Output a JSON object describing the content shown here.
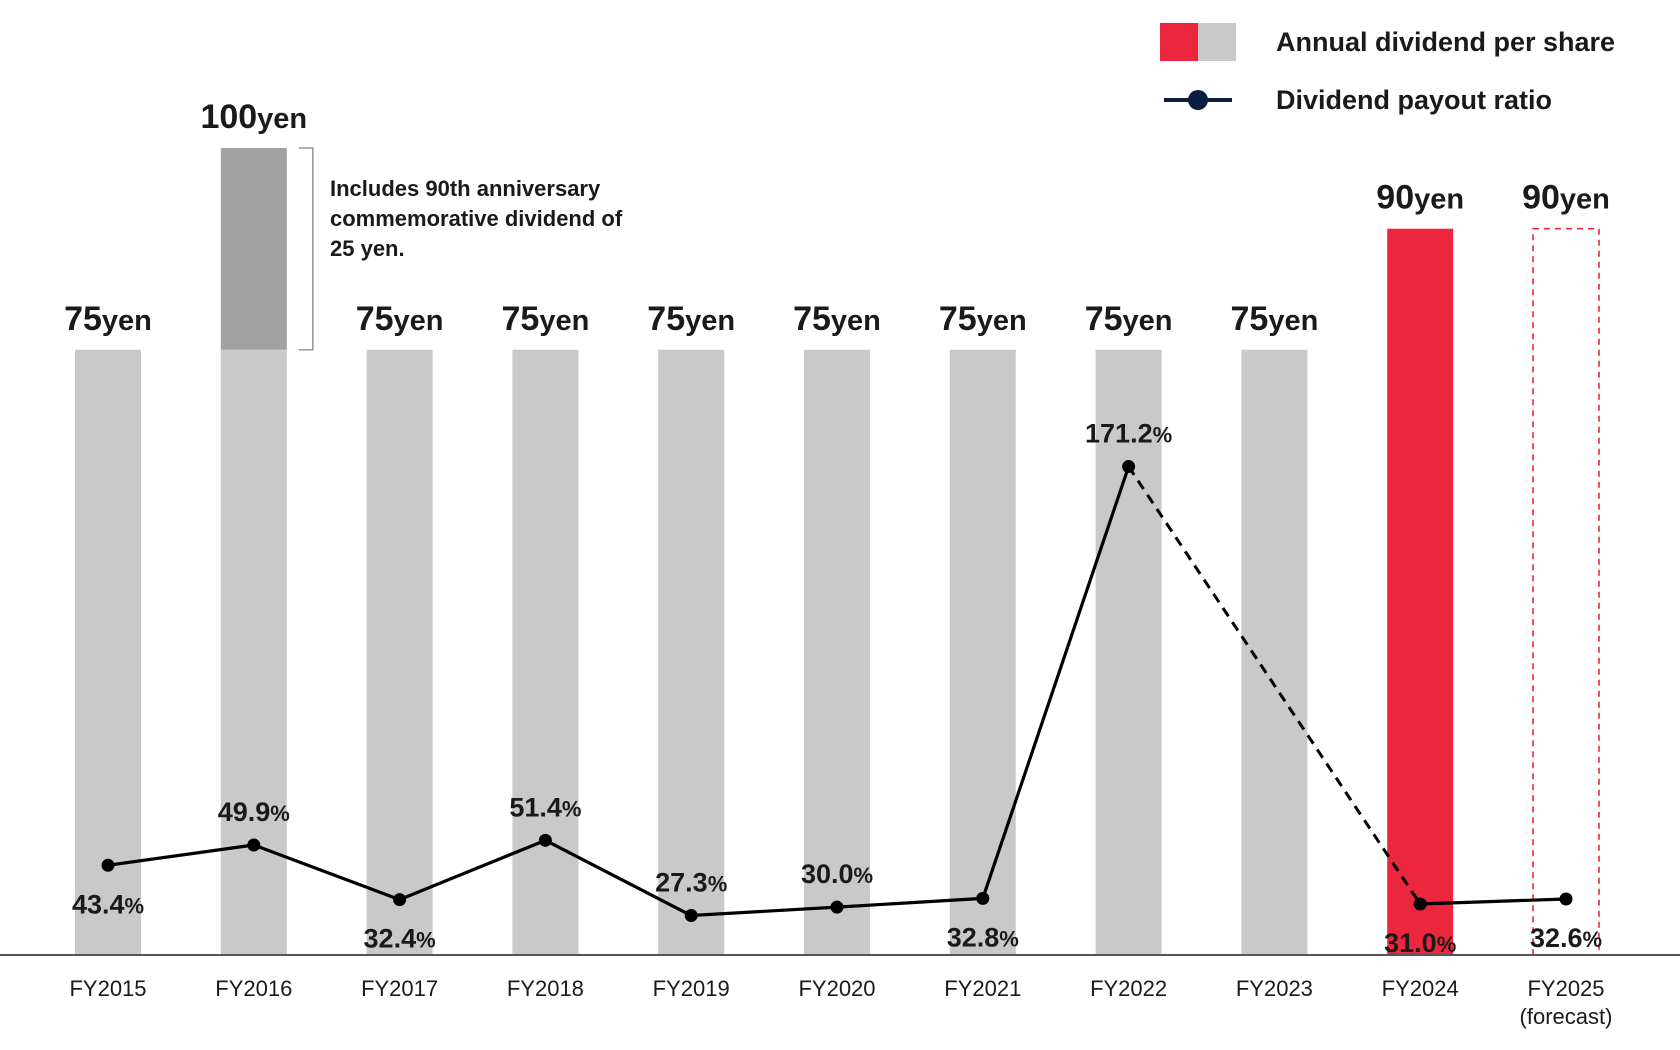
{
  "chart_data": {
    "type": "bar+line",
    "categories": [
      "FY2015",
      "FY2016",
      "FY2017",
      "FY2018",
      "FY2019",
      "FY2020",
      "FY2021",
      "FY2022",
      "FY2023",
      "FY2024",
      "FY2025"
    ],
    "category_sublabels": [
      "",
      "",
      "",
      "",
      "",
      "",
      "",
      "",
      "",
      "",
      "(forecast)"
    ],
    "dividend": {
      "name": "Annual dividend per share",
      "values": [
        75,
        100,
        75,
        75,
        75,
        75,
        75,
        75,
        75,
        90,
        90
      ],
      "base_values": [
        75,
        75,
        75,
        75,
        75,
        75,
        75,
        75,
        75,
        90,
        90
      ],
      "commemorative_values": [
        0,
        25,
        0,
        0,
        0,
        0,
        0,
        0,
        0,
        0,
        0
      ],
      "labels": [
        "75",
        "100",
        "75",
        "75",
        "75",
        "75",
        "75",
        "75",
        "75",
        "90",
        "90"
      ],
      "unit": "yen",
      "highlight_index": 9,
      "forecast_index": 10
    },
    "payout": {
      "name": "Dividend payout ratio",
      "values": [
        43.4,
        49.9,
        32.4,
        51.4,
        27.3,
        30.0,
        32.8,
        171.2,
        null,
        31.0,
        32.6
      ],
      "labels": [
        "43.4",
        "49.9",
        "32.4",
        "51.4",
        "27.3",
        "30.0",
        "32.8",
        "171.2",
        "",
        "31.0",
        "32.6"
      ],
      "label_pos": [
        "below",
        "above",
        "below",
        "above",
        "above",
        "above",
        "below",
        "above",
        "",
        "below",
        "below"
      ],
      "unit": "%",
      "dashed_gap_from": 7,
      "dashed_gap_to": 9
    },
    "ylim_dividend": [
      0,
      100
    ],
    "legend_position": "top-right",
    "grid": false
  },
  "legend": {
    "dividend_label": "Annual dividend per share",
    "payout_label": "Dividend payout ratio"
  },
  "annotation": {
    "text": "Includes 90th anniversary\ncommemorative dividend of\n25 yen."
  },
  "colors": {
    "bar": "#c9c9c9",
    "bar_commemorative": "#a0a1a0",
    "bar_highlight": "#ec263d",
    "forecast_outline": "#ec263d",
    "line": "#000000",
    "legend_line": "#0b1e3f",
    "axis": "#555555",
    "text": "#1a1a1a"
  }
}
